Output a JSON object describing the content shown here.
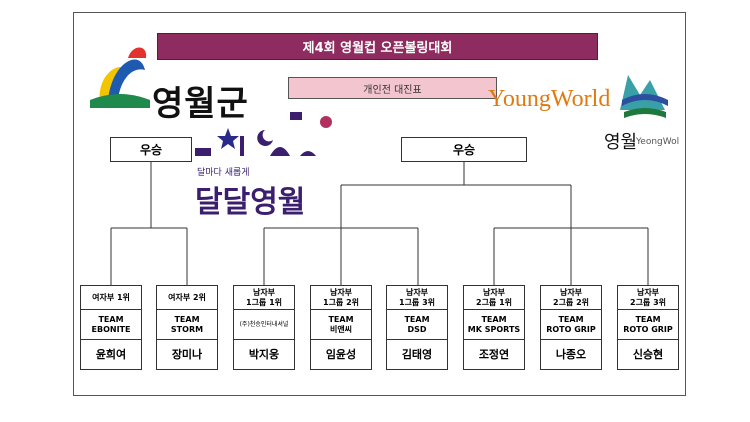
{
  "title": "제4회 영월컵 오픈볼링대회",
  "subtitle": "개인전 대진표",
  "logos": {
    "county": "영월군",
    "brand": "YoungWorld",
    "brand_kr": "영월",
    "brand_en": "YeongWol",
    "slogan": "달마다 새롭게",
    "slogan_big": "달달영월"
  },
  "winner_left": "우승",
  "winner_right": "우승",
  "players": [
    {
      "division": [
        "여자부 1위"
      ],
      "team": [
        "TEAM",
        "EBONITE"
      ],
      "name": "윤희여"
    },
    {
      "division": [
        "여자부 2위"
      ],
      "team": [
        "TEAM",
        "STORM"
      ],
      "name": "장미나"
    },
    {
      "division": [
        "남자부",
        "1그룹 1위"
      ],
      "team": [
        "(주)천승인터내셔널"
      ],
      "name": "박지웅"
    },
    {
      "division": [
        "남자부",
        "1그룹 2위"
      ],
      "team": [
        "TEAM",
        "비앤씨"
      ],
      "name": "임윤성"
    },
    {
      "division": [
        "남자부",
        "1그룹 3위"
      ],
      "team": [
        "TEAM",
        "DSD"
      ],
      "name": "김태영"
    },
    {
      "division": [
        "남자부",
        "2그룹 1위"
      ],
      "team": [
        "TEAM",
        "MK SPORTS"
      ],
      "name": "조정연"
    },
    {
      "division": [
        "남자부",
        "2그룹 2위"
      ],
      "team": [
        "TEAM",
        "ROTO GRIP"
      ],
      "name": "나종오"
    },
    {
      "division": [
        "남자부",
        "2그룹 3위"
      ],
      "team": [
        "TEAM",
        "ROTO GRIP"
      ],
      "name": "신승현"
    }
  ]
}
